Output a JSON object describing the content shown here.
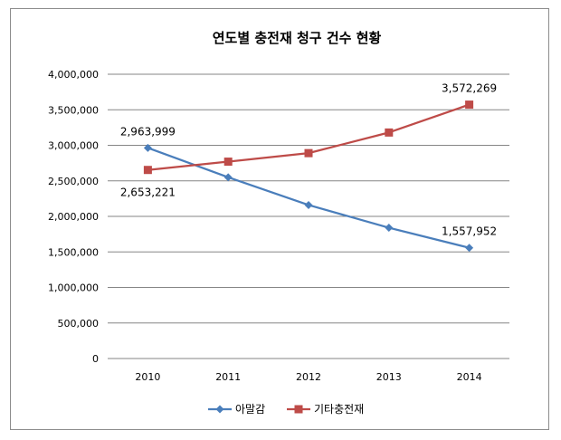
{
  "chart_data": {
    "type": "line",
    "title": "연도별 충전재 청구 건수 현황",
    "categories": [
      "2010",
      "2011",
      "2012",
      "2013",
      "2014"
    ],
    "ylim": [
      0,
      4000000
    ],
    "yticks": [
      0,
      500000,
      1000000,
      1500000,
      2000000,
      2500000,
      3000000,
      3500000,
      4000000
    ],
    "ytick_labels": [
      "0",
      "500,000",
      "1,000,000",
      "1,500,000",
      "2,000,000",
      "2,500,000",
      "3,000,000",
      "3,500,000",
      "4,000,000"
    ],
    "grid": "horizontal",
    "legend_position": "bottom",
    "series": [
      {
        "name": "아말감",
        "color": "#4a7ebb",
        "marker": "diamond",
        "values": [
          2963999,
          2550000,
          2160000,
          1840000,
          1557952
        ],
        "labels": [
          "2,963,999",
          "",
          "",
          "",
          "1,557,952"
        ]
      },
      {
        "name": "기타충전재",
        "color": "#be4b48",
        "marker": "square",
        "values": [
          2653221,
          2770000,
          2890000,
          3180000,
          3572269
        ],
        "labels": [
          "2,653,221",
          "",
          "",
          "",
          "3,572,269"
        ]
      }
    ]
  }
}
